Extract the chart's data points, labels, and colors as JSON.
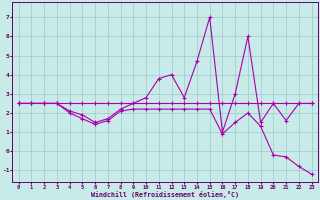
{
  "background_color": "#c8eae8",
  "line_color": "#aa00aa",
  "grid_color": "#99cccc",
  "xlabel": "Windchill (Refroidissement éolien,°C)",
  "xlabel_color": "#660066",
  "tick_color": "#660066",
  "spine_color": "#660066",
  "ylim": [
    -1.6,
    7.8
  ],
  "xlim": [
    -0.5,
    23.5
  ],
  "yticks": [
    -1,
    0,
    1,
    2,
    3,
    4,
    5,
    6,
    7
  ],
  "xticks": [
    0,
    1,
    2,
    3,
    4,
    5,
    6,
    7,
    8,
    9,
    10,
    11,
    12,
    13,
    14,
    15,
    16,
    17,
    18,
    19,
    20,
    21,
    22,
    23
  ],
  "line1_x": [
    0,
    1,
    2,
    3,
    4,
    5,
    6,
    7,
    8,
    9,
    10,
    11,
    12,
    13,
    14,
    15,
    16,
    17,
    18,
    19,
    20,
    21,
    22,
    23
  ],
  "line1_y": [
    2.5,
    2.5,
    2.5,
    2.5,
    2.5,
    2.5,
    2.5,
    2.5,
    2.5,
    2.5,
    2.5,
    2.5,
    2.5,
    2.5,
    2.5,
    2.5,
    2.5,
    2.5,
    2.5,
    2.5,
    2.5,
    2.5,
    2.5,
    2.5
  ],
  "line2_x": [
    0,
    1,
    2,
    3,
    4,
    5,
    6,
    7,
    8,
    9,
    10,
    11,
    12,
    13,
    14,
    15,
    16,
    17,
    18,
    19,
    20,
    21,
    22,
    23
  ],
  "line2_y": [
    2.5,
    2.5,
    2.5,
    2.5,
    2.1,
    1.9,
    1.5,
    1.7,
    2.2,
    2.5,
    2.8,
    3.8,
    4.0,
    2.8,
    4.7,
    7.0,
    1.0,
    3.0,
    6.0,
    1.5,
    2.5,
    1.6,
    2.5,
    2.5
  ],
  "line3_x": [
    0,
    1,
    2,
    3,
    4,
    5,
    6,
    7,
    8,
    9,
    10,
    11,
    12,
    13,
    14,
    15,
    16,
    17,
    18,
    19,
    20,
    21,
    22,
    23
  ],
  "line3_y": [
    2.5,
    2.5,
    2.5,
    2.5,
    2.0,
    1.7,
    1.4,
    1.6,
    2.1,
    2.2,
    2.2,
    2.2,
    2.2,
    2.2,
    2.2,
    2.2,
    0.9,
    1.5,
    2.0,
    1.3,
    -0.2,
    -0.3,
    -0.8,
    -1.2
  ]
}
